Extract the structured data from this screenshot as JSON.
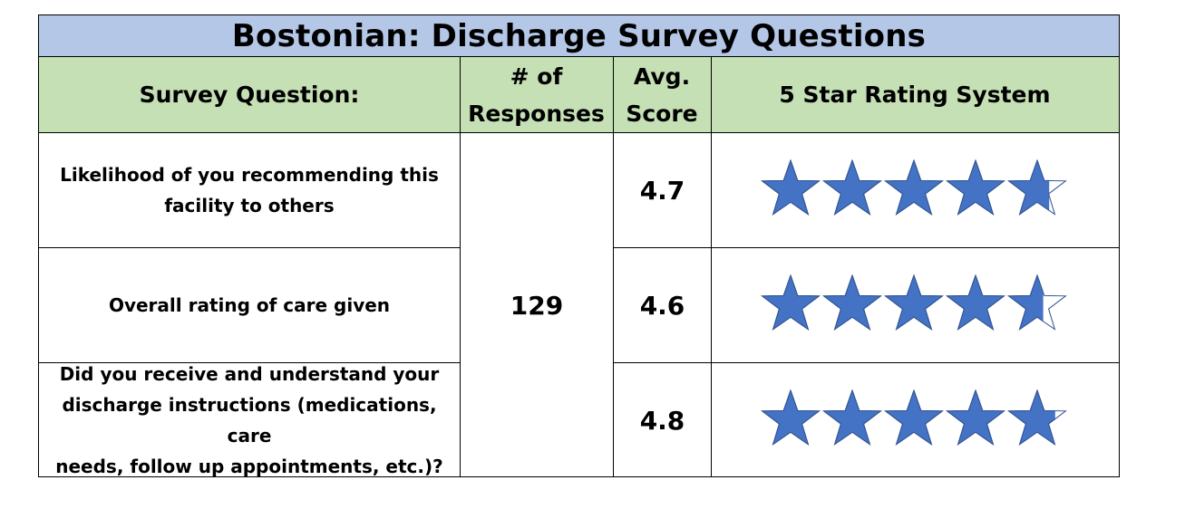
{
  "title": "Bostonian: Discharge Survey Questions",
  "headers": {
    "question": "Survey Question:",
    "responses_line1": "# of",
    "responses_line2": "Responses",
    "score_line1": "Avg.",
    "score_line2": "Score",
    "rating": "5 Star Rating System"
  },
  "responses": "129",
  "rows": [
    {
      "question_line1": "Likelihood of you recommending this",
      "question_line2": "facility to others",
      "question_line3": "",
      "score": "4.7",
      "stars": 4.7
    },
    {
      "question_line1": "Overall rating of care given",
      "question_line2": "",
      "question_line3": "",
      "score": "4.6",
      "stars": 4.6
    },
    {
      "question_line1": "Did you receive and understand your",
      "question_line2": "discharge instructions (medications, care",
      "question_line3": "needs, follow up appointments, etc.)?",
      "score": "4.8",
      "stars": 4.8
    }
  ],
  "colors": {
    "title_bg": "#b4c7e7",
    "header_bg": "#c5e0b4",
    "star_fill": "#4472c4",
    "star_outline": "#2f528f"
  }
}
